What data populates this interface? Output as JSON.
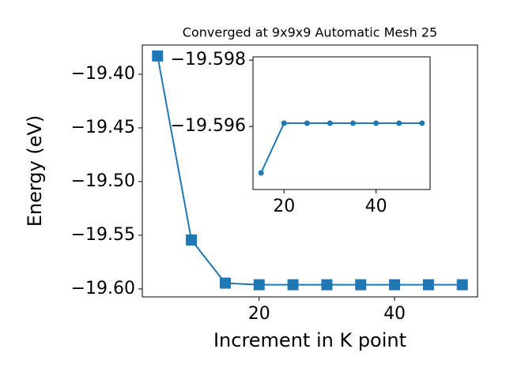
{
  "chart_data": [
    {
      "type": "line",
      "title": "Converged at 9x9x9 Automatic Mesh 25",
      "x_label": "Increment in K point",
      "y_label": "Energy (eV)",
      "x": [
        5,
        10,
        15,
        20,
        25,
        30,
        35,
        40,
        45,
        50
      ],
      "series": [
        {
          "color": "#1f77b4",
          "marker": "square",
          "values": [
            -19.383,
            -19.5544,
            -19.5946,
            -19.5961,
            -19.5961,
            -19.5961,
            -19.5961,
            -19.5961,
            -19.5961,
            -19.5961
          ]
        }
      ],
      "xlim": [
        2.75,
        52.25
      ],
      "ylim": [
        -19.6074,
        -19.3728
      ],
      "xticks": [
        20,
        40
      ],
      "yticks": [
        {
          "value": -19.4,
          "label": "−19.40"
        },
        {
          "value": -19.45,
          "label": "−19.45"
        },
        {
          "value": -19.5,
          "label": "−19.50"
        },
        {
          "value": -19.55,
          "label": "−19.55"
        },
        {
          "value": -19.6,
          "label": "−19.60"
        }
      ]
    },
    {
      "type": "line",
      "x": [
        15,
        20,
        25,
        30,
        35,
        40,
        45,
        50
      ],
      "series": [
        {
          "color": "#1f77b4",
          "marker": "circle",
          "values": [
            -19.5946,
            -19.5961,
            -19.5961,
            -19.5961,
            -19.5961,
            -19.5961,
            -19.5961,
            -19.5961
          ]
        }
      ],
      "xlim": [
        13.25,
        51.75
      ],
      "ylim": [
        -19.5941,
        -19.5981
      ],
      "xticks": [
        20,
        40
      ],
      "yticks": [
        {
          "value": -19.598,
          "label": "−19.598"
        },
        {
          "value": -19.596,
          "label": "−19.596"
        }
      ]
    }
  ]
}
